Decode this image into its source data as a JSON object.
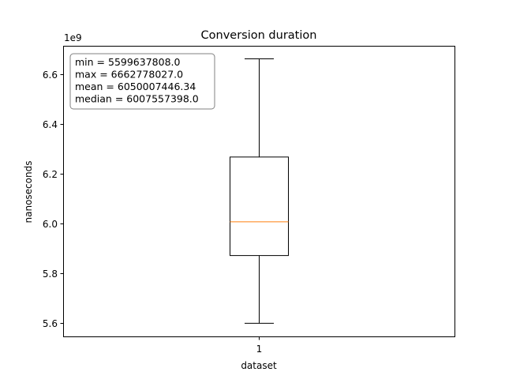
{
  "chart_data": {
    "type": "box",
    "title": "Conversion duration",
    "xlabel": "dataset",
    "ylabel": "nanoseconds",
    "y_offset_label": "1e9",
    "x_ticks": [
      {
        "label": "1"
      }
    ],
    "y_ticks": [
      {
        "value": 5.6,
        "label": "5.6"
      },
      {
        "value": 5.8,
        "label": "5.8"
      },
      {
        "value": 6.0,
        "label": "6.0"
      },
      {
        "value": 6.2,
        "label": "6.2"
      },
      {
        "value": 6.4,
        "label": "6.4"
      },
      {
        "value": 6.6,
        "label": "6.6"
      }
    ],
    "ylim": [
      5.547,
      6.715
    ],
    "boxes": [
      {
        "category": "1",
        "whisker_low": 5.5996,
        "q1": 5.872,
        "median": 6.0076,
        "q3": 6.268,
        "whisker_high": 6.6628
      }
    ],
    "stats_lines": [
      "min = 5599637808.0",
      "max = 6662778027.0",
      "mean = 6050007446.34",
      "median = 6007557398.0"
    ],
    "colors": {
      "box": "#000000",
      "median": "#ff7f0e",
      "stats_border": "#808080"
    }
  }
}
